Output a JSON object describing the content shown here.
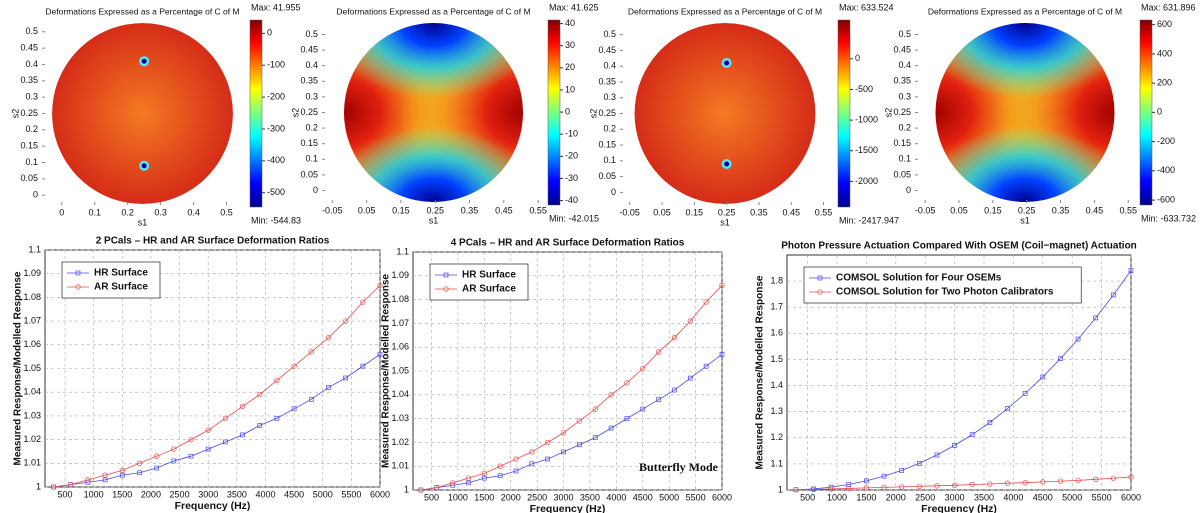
{
  "chart_data": [
    {
      "type": "heatmap",
      "title": "Deformations Expressed as a Percentage of C of M",
      "xlabel": "s1",
      "ylabel": "s2",
      "xlim": [
        -0.06,
        0.55
      ],
      "ylim": [
        -0.03,
        0.53
      ],
      "xticks": [
        0,
        0.1,
        0.2,
        0.3,
        0.4,
        0.5
      ],
      "yticks": [
        0,
        0.05,
        0.1,
        0.15,
        0.2,
        0.25,
        0.3,
        0.35,
        0.4,
        0.45,
        0.5
      ],
      "clim": [
        -544.83,
        41.955
      ],
      "cticks": [
        0,
        -100,
        -200,
        -300,
        -400,
        -500
      ],
      "max_label": "Max: 41.955",
      "min_label": "Min: -544.83",
      "markers": {
        "x": [
          0.25,
          0.25
        ],
        "y": [
          0.41,
          0.09
        ]
      }
    },
    {
      "type": "heatmap",
      "title": "Deformations Expressed as a Percentage of C of M",
      "xlabel": "s1",
      "ylabel": "s2",
      "xlim": [
        -0.08,
        0.57
      ],
      "ylim": [
        -0.04,
        0.54
      ],
      "xticks": [
        -0.05,
        0.05,
        0.15,
        0.25,
        0.35,
        0.45,
        0.55
      ],
      "yticks": [
        0,
        0.05,
        0.1,
        0.15,
        0.2,
        0.25,
        0.3,
        0.35,
        0.4,
        0.45,
        0.5
      ],
      "clim": [
        -42.015,
        41.625
      ],
      "cticks": [
        40,
        30,
        20,
        10,
        0,
        -10,
        -20,
        -30,
        -40
      ],
      "max_label": "Max: 41.625",
      "min_label": "Min: -42.015"
    },
    {
      "type": "heatmap",
      "title": "Deformations Expressed as a Percentage of C of M",
      "xlabel": "s1",
      "ylabel": "s2",
      "xlim": [
        -0.08,
        0.57
      ],
      "ylim": [
        -0.04,
        0.54
      ],
      "xticks": [
        -0.05,
        0.05,
        0.15,
        0.25,
        0.35,
        0.45,
        0.55
      ],
      "yticks": [
        0,
        0.05,
        0.1,
        0.15,
        0.2,
        0.25,
        0.3,
        0.35,
        0.4,
        0.45,
        0.5
      ],
      "clim": [
        -2417.947,
        633.524
      ],
      "cticks": [
        0,
        -500,
        -1000,
        -1500,
        -2000
      ],
      "max_label": "Max: 633.524",
      "min_label": "Min: -2417.947",
      "markers": {
        "x": [
          0.25,
          0.25
        ],
        "y": [
          0.41,
          0.09
        ]
      }
    },
    {
      "type": "heatmap",
      "title": "Deformations Expressed as a Percentage of C of M",
      "xlabel": "s1",
      "ylabel": "s2",
      "xlim": [
        -0.08,
        0.57
      ],
      "ylim": [
        -0.04,
        0.54
      ],
      "xticks": [
        -0.05,
        0.05,
        0.15,
        0.25,
        0.35,
        0.45,
        0.55
      ],
      "yticks": [
        0,
        0.05,
        0.1,
        0.15,
        0.2,
        0.25,
        0.3,
        0.35,
        0.4,
        0.45,
        0.5
      ],
      "clim": [
        -633.732,
        631.896
      ],
      "cticks": [
        600,
        400,
        200,
        0,
        -200,
        -400,
        -600
      ],
      "max_label": "Max: 631.896",
      "min_label": "Min: -633.732"
    },
    {
      "type": "line",
      "title": "2 PCals – HR and AR Surface Deformation Ratios",
      "xlabel": "Frequency (Hz)",
      "ylabel": "Measured Response/Modelled Response",
      "x": [
        300,
        600,
        900,
        1200,
        1500,
        1800,
        2100,
        2400,
        2700,
        3000,
        3300,
        3600,
        3900,
        4200,
        4500,
        4800,
        5100,
        5400,
        5700,
        6000
      ],
      "xlim": [
        150,
        6000
      ],
      "ylim": [
        1,
        1.1
      ],
      "xticks": [
        500,
        1000,
        1500,
        2000,
        2500,
        3000,
        3500,
        4000,
        4500,
        5000,
        5500,
        6000
      ],
      "yticks": [
        1,
        1.01,
        1.02,
        1.03,
        1.04,
        1.05,
        1.06,
        1.07,
        1.08,
        1.09,
        1.1
      ],
      "grid": true,
      "legend": "upper left",
      "series": [
        {
          "name": "HR Surface",
          "color": "#4a4ae8",
          "marker": "square",
          "values": [
            1.0,
            1.001,
            1.002,
            1.003,
            1.005,
            1.006,
            1.008,
            1.011,
            1.013,
            1.016,
            1.019,
            1.022,
            1.026,
            1.029,
            1.033,
            1.037,
            1.042,
            1.046,
            1.051,
            1.056
          ]
        },
        {
          "name": "AR Surface",
          "color": "#e84a4a",
          "marker": "circle",
          "values": [
            1.0,
            1.001,
            1.003,
            1.005,
            1.007,
            1.01,
            1.013,
            1.016,
            1.02,
            1.024,
            1.029,
            1.034,
            1.039,
            1.045,
            1.051,
            1.057,
            1.063,
            1.07,
            1.078,
            1.085
          ]
        }
      ]
    },
    {
      "type": "line",
      "title": "4 PCals – HR and AR Surface Deformation Ratios",
      "xlabel": "Frequency (Hz)",
      "ylabel": "Measured Response/Modelled Response",
      "x": [
        300,
        600,
        900,
        1200,
        1500,
        1800,
        2100,
        2400,
        2700,
        3000,
        3300,
        3600,
        3900,
        4200,
        4500,
        4800,
        5100,
        5400,
        5700,
        6000
      ],
      "xlim": [
        150,
        6000
      ],
      "ylim": [
        1,
        1.1
      ],
      "xticks": [
        500,
        1000,
        1500,
        2000,
        2500,
        3000,
        3500,
        4000,
        4500,
        5000,
        5500,
        6000
      ],
      "yticks": [
        1,
        1.01,
        1.02,
        1.03,
        1.04,
        1.05,
        1.06,
        1.07,
        1.08,
        1.09,
        1.1
      ],
      "grid": true,
      "legend": "upper left",
      "annotation": "Butterfly Mode",
      "series": [
        {
          "name": "HR Surface",
          "color": "#4a4ae8",
          "marker": "square",
          "values": [
            1.0,
            1.001,
            1.002,
            1.003,
            1.005,
            1.006,
            1.008,
            1.011,
            1.013,
            1.016,
            1.019,
            1.022,
            1.026,
            1.03,
            1.034,
            1.038,
            1.042,
            1.047,
            1.052,
            1.057
          ]
        },
        {
          "name": "AR Surface",
          "color": "#e84a4a",
          "marker": "circle",
          "values": [
            1.0,
            1.001,
            1.003,
            1.005,
            1.007,
            1.01,
            1.013,
            1.016,
            1.02,
            1.024,
            1.029,
            1.034,
            1.04,
            1.045,
            1.051,
            1.058,
            1.064,
            1.071,
            1.079,
            1.086
          ]
        }
      ]
    },
    {
      "type": "line",
      "title": "Photon Pressure Actuation Compared With OSEM (Coil−magnet) Actuation",
      "xlabel": "Frequency (Hz)",
      "ylabel": "Measured Response/Modelled Response",
      "x": [
        300,
        600,
        900,
        1200,
        1500,
        1800,
        2100,
        2400,
        2700,
        3000,
        3300,
        3600,
        3900,
        4200,
        4500,
        4800,
        5100,
        5400,
        5700,
        6000
      ],
      "xlim": [
        150,
        6000
      ],
      "ylim": [
        1,
        1.9
      ],
      "xticks": [
        500,
        1000,
        1500,
        2000,
        2500,
        3000,
        3500,
        4000,
        4500,
        5000,
        5500,
        6000
      ],
      "yticks": [
        1,
        1.1,
        1.2,
        1.3,
        1.4,
        1.5,
        1.6,
        1.7,
        1.8
      ],
      "grid": true,
      "legend": "upper left",
      "series": [
        {
          "name": "COMSOL Solution for Four OSEMs",
          "color": "#4a4ae8",
          "marker": "square",
          "values": [
            1.001,
            1.004,
            1.011,
            1.021,
            1.035,
            1.053,
            1.075,
            1.102,
            1.134,
            1.171,
            1.212,
            1.259,
            1.312,
            1.37,
            1.433,
            1.503,
            1.578,
            1.659,
            1.747,
            1.84
          ]
        },
        {
          "name": "COMSOL Solution for Two Photon Calibrators",
          "color": "#e84a4a",
          "marker": "circle",
          "values": [
            1.001,
            1.002,
            1.004,
            1.006,
            1.008,
            1.01,
            1.012,
            1.014,
            1.016,
            1.018,
            1.021,
            1.023,
            1.026,
            1.028,
            1.031,
            1.034,
            1.037,
            1.041,
            1.045,
            1.05
          ]
        }
      ]
    }
  ]
}
